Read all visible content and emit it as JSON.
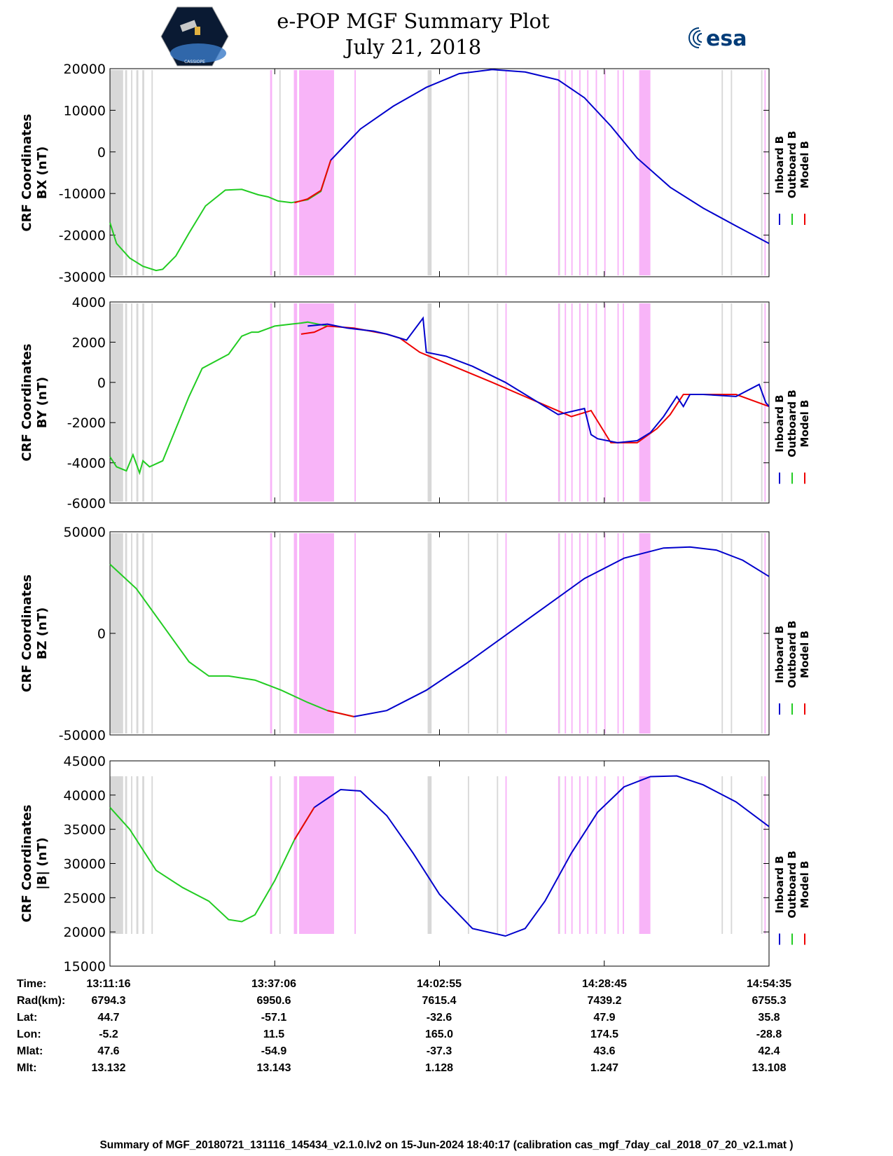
{
  "header": {
    "title_line1": "e-POP MGF Summary Plot",
    "title_line2": "July 21, 2018",
    "left_logo_text": "CASSIOPE",
    "right_logo_text": "esa"
  },
  "legend": [
    "Inboard B",
    "Outboard B",
    "Model B"
  ],
  "colors": {
    "inboard": "#0000cc",
    "outboard": "#22cc22",
    "model": "#ee0000",
    "gap_gray": "#d8d8d8",
    "gap_pink": "#f8b4f8"
  },
  "chart_data": [
    {
      "type": "line",
      "ylabel_line1": "CRF Coordinates",
      "ylabel_line2": "BX (nT)",
      "ylim": [
        -30000,
        20000
      ],
      "yticks": [
        20000,
        10000,
        0,
        -10000,
        -20000,
        -30000
      ],
      "series": [
        {
          "name": "Outboard B",
          "x": [
            0,
            0.01,
            0.03,
            0.05,
            0.07,
            0.08,
            0.1,
            0.12,
            0.145,
            0.175,
            0.2,
            0.225,
            0.24,
            0.255,
            0.275,
            0.3,
            0.32,
            0.335
          ],
          "y": [
            -17000,
            -22000,
            -25500,
            -27500,
            -28500,
            -28200,
            -25000,
            -19500,
            -13000,
            -9200,
            -9000,
            -10300,
            -10800,
            -11800,
            -12200,
            -11500,
            -9500,
            -2000
          ]
        },
        {
          "name": "Model B",
          "x": [
            0.28,
            0.3,
            0.32,
            0.335
          ],
          "y": [
            -12200,
            -11300,
            -9300,
            -2000
          ]
        },
        {
          "name": "Inboard B",
          "x": [
            0.335,
            0.38,
            0.43,
            0.48,
            0.53,
            0.58,
            0.63,
            0.68,
            0.72,
            0.76,
            0.8,
            0.85,
            0.9,
            0.95,
            1.0
          ],
          "y": [
            -2000,
            5500,
            11000,
            15500,
            18800,
            19800,
            19200,
            17300,
            13000,
            6200,
            -1500,
            -8500,
            -13500,
            -17800,
            -22000
          ]
        }
      ]
    },
    {
      "type": "line",
      "ylabel_line1": "CRF Coordinates",
      "ylabel_line2": "BY (nT)",
      "ylim": [
        -6000,
        4000
      ],
      "yticks": [
        4000,
        2000,
        0,
        -2000,
        -4000,
        -6000
      ],
      "series": [
        {
          "name": "Outboard B",
          "x": [
            0,
            0.01,
            0.025,
            0.035,
            0.045,
            0.05,
            0.06,
            0.08,
            0.1,
            0.12,
            0.14,
            0.18,
            0.2,
            0.215,
            0.225,
            0.25,
            0.275,
            0.29,
            0.3,
            0.33
          ],
          "y": [
            -3700,
            -4200,
            -4400,
            -3600,
            -4500,
            -3900,
            -4200,
            -3900,
            -2300,
            -700,
            700,
            1400,
            2300,
            2500,
            2500,
            2800,
            2900,
            2950,
            3000,
            2800
          ]
        },
        {
          "name": "Model B",
          "x": [
            0.29,
            0.31,
            0.33,
            0.37,
            0.42,
            0.44,
            0.47,
            0.58,
            0.7,
            0.73,
            0.76,
            0.8,
            0.83,
            0.85,
            0.87,
            0.9,
            0.95,
            1.0
          ],
          "y": [
            2400,
            2500,
            2800,
            2700,
            2400,
            2200,
            1500,
            0,
            -1700,
            -1400,
            -3000,
            -3000,
            -2300,
            -1600,
            -600,
            -600,
            -600,
            -1200
          ]
        },
        {
          "name": "Inboard B",
          "x": [
            0.3,
            0.33,
            0.36,
            0.4,
            0.42,
            0.45,
            0.475,
            0.48,
            0.51,
            0.55,
            0.6,
            0.68,
            0.72,
            0.73,
            0.74,
            0.77,
            0.8,
            0.82,
            0.84,
            0.86,
            0.87,
            0.88,
            0.9,
            0.95,
            0.985,
            0.995,
            1.0
          ],
          "y": [
            2800,
            2900,
            2700,
            2550,
            2400,
            2100,
            3200,
            1500,
            1300,
            800,
            0,
            -1600,
            -1300,
            -2600,
            -2800,
            -3000,
            -2900,
            -2500,
            -1700,
            -700,
            -1200,
            -600,
            -600,
            -700,
            -100,
            -1000,
            -1200
          ]
        }
      ]
    },
    {
      "type": "line",
      "ylabel_line1": "CRF Coordinates",
      "ylabel_line2": "BZ (nT)",
      "ylim": [
        -50000,
        50000
      ],
      "yticks": [
        50000,
        0,
        -50000
      ],
      "series": [
        {
          "name": "Outboard B",
          "x": [
            0,
            0.04,
            0.08,
            0.12,
            0.15,
            0.18,
            0.22,
            0.26,
            0.3,
            0.33,
            0.37
          ],
          "y": [
            34000,
            22000,
            4000,
            -14000,
            -21000,
            -21000,
            -23000,
            -28000,
            -34000,
            -38000,
            -41000
          ]
        },
        {
          "name": "Model B",
          "x": [
            0.33,
            0.37
          ],
          "y": [
            -38000,
            -41000
          ]
        },
        {
          "name": "Inboard B",
          "x": [
            0.37,
            0.42,
            0.48,
            0.54,
            0.6,
            0.66,
            0.72,
            0.78,
            0.84,
            0.88,
            0.92,
            0.96,
            1.0
          ],
          "y": [
            -41000,
            -38000,
            -28000,
            -15000,
            -1000,
            13000,
            27000,
            37000,
            42000,
            42500,
            41000,
            36000,
            28000
          ]
        }
      ]
    },
    {
      "type": "line",
      "ylabel_line1": "CRF Coordinates",
      "ylabel_line2": "|B| (nT)",
      "ylim": [
        15000,
        45000
      ],
      "yticks": [
        45000,
        40000,
        35000,
        30000,
        25000,
        20000,
        15000
      ],
      "series": [
        {
          "name": "Outboard B",
          "x": [
            0,
            0.03,
            0.07,
            0.11,
            0.15,
            0.18,
            0.2,
            0.22,
            0.25,
            0.28,
            0.31
          ],
          "y": [
            38200,
            35000,
            29000,
            26500,
            24500,
            21800,
            21500,
            22500,
            27500,
            33500,
            38200
          ]
        },
        {
          "name": "Model B",
          "x": [
            0.28,
            0.31
          ],
          "y": [
            33500,
            38200
          ]
        },
        {
          "name": "Inboard B",
          "x": [
            0.31,
            0.35,
            0.38,
            0.42,
            0.46,
            0.5,
            0.55,
            0.6,
            0.63,
            0.66,
            0.7,
            0.74,
            0.78,
            0.82,
            0.86,
            0.9,
            0.95,
            1.0
          ],
          "y": [
            38200,
            40800,
            40600,
            37000,
            31500,
            25500,
            20500,
            19400,
            20500,
            24500,
            31500,
            37500,
            41200,
            42700,
            42800,
            41500,
            39000,
            35400
          ]
        }
      ]
    }
  ],
  "gaps": {
    "gray": [
      [
        0.0,
        0.02
      ],
      [
        0.023,
        0.026
      ],
      [
        0.032,
        0.034
      ],
      [
        0.04,
        0.043
      ],
      [
        0.049,
        0.052
      ],
      [
        0.063,
        0.065
      ],
      [
        0.257,
        0.259
      ],
      [
        0.482,
        0.488
      ],
      [
        0.543,
        0.545
      ],
      [
        0.587,
        0.589
      ],
      [
        0.681,
        0.683
      ],
      [
        0.928,
        0.93
      ],
      [
        0.942,
        0.944
      ],
      [
        0.988,
        0.99
      ]
    ],
    "pink": [
      [
        0.243,
        0.246
      ],
      [
        0.279,
        0.284
      ],
      [
        0.287,
        0.34
      ],
      [
        0.371,
        0.373
      ],
      [
        0.6,
        0.602
      ],
      [
        0.68,
        0.682
      ],
      [
        0.69,
        0.692
      ],
      [
        0.7,
        0.702
      ],
      [
        0.712,
        0.714
      ],
      [
        0.724,
        0.726
      ],
      [
        0.737,
        0.739
      ],
      [
        0.75,
        0.752
      ],
      [
        0.77,
        0.772
      ],
      [
        0.778,
        0.78
      ],
      [
        0.803,
        0.82
      ],
      [
        0.993,
        0.995
      ]
    ]
  },
  "time_labels": {
    "Time:": [
      "13:11:16",
      "13:37:06",
      "14:02:55",
      "14:28:45",
      "14:54:35"
    ],
    "Rad(km):": [
      "6794.3",
      "6950.6",
      "7615.4",
      "7439.2",
      "6755.3"
    ],
    "Lat:": [
      "44.7",
      "-57.1",
      "-32.6",
      "47.9",
      "35.8"
    ],
    "Lon:": [
      "-5.2",
      "11.5",
      "165.0",
      "174.5",
      "-28.8"
    ],
    "Mlat:": [
      "47.6",
      "-54.9",
      "-37.3",
      "43.6",
      "42.4"
    ],
    "Mlt:": [
      "13.132",
      "13.143",
      "1.128",
      "1.247",
      "13.108"
    ]
  },
  "footer": "Summary of MGF_20180721_131116_145434_v2.1.0.lv2 on 15-Jun-2024 18:40:17 (calibration cas_mgf_7day_cal_2018_07_20_v2.1.mat )"
}
